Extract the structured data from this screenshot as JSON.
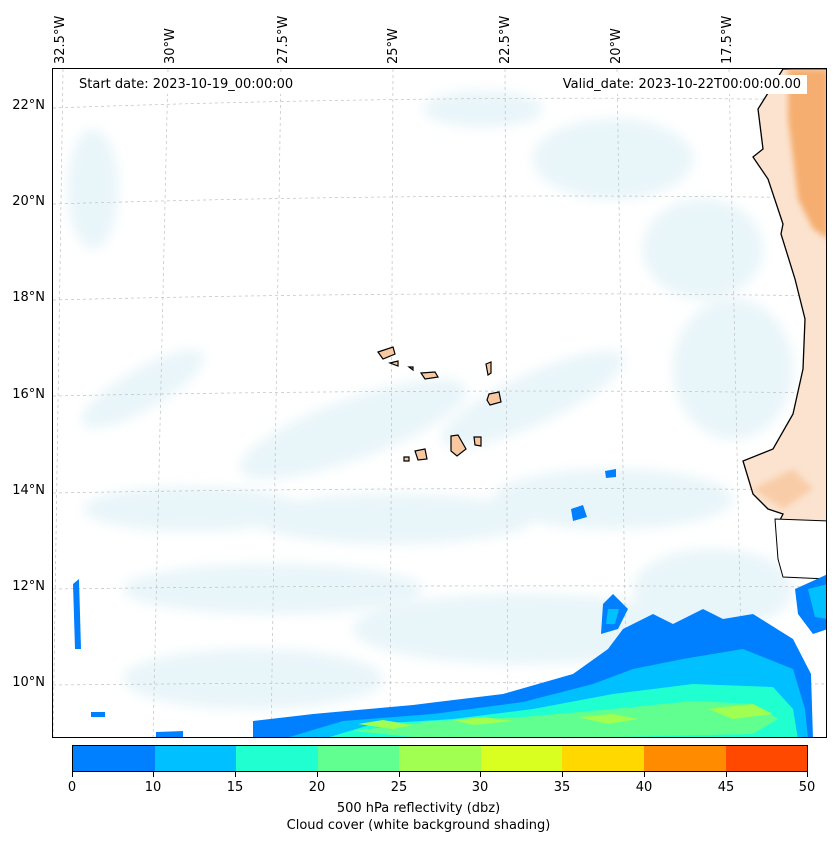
{
  "map": {
    "start_date": "Start date: 2023-10-19_00:00:00",
    "valid_date": "Valid_date: 2023-10-22T00:00:00.00",
    "lon_labels": [
      "32.5°W",
      "30°W",
      "27.5°W",
      "25°W",
      "22.5°W",
      "20°W",
      "17.5°W"
    ],
    "lat_labels": [
      "22°N",
      "20°N",
      "18°N",
      "16°N",
      "14°N",
      "12°N",
      "10°N"
    ],
    "land_color": "#f4a460",
    "island_color": "#f8c8a0",
    "cloud_color": "#d6edf5"
  },
  "colorbar": {
    "title": "500 hPa reflectivity (dbz)",
    "subtitle": "Cloud cover (white background shading)",
    "ticks": [
      "0",
      "10",
      "15",
      "20",
      "25",
      "30",
      "35",
      "40",
      "45",
      "50"
    ],
    "colors": [
      "#0080ff",
      "#00c0ff",
      "#20ffd0",
      "#60ff90",
      "#a0ff50",
      "#d8ff20",
      "#ffd800",
      "#ff8c00",
      "#ff4800"
    ]
  }
}
